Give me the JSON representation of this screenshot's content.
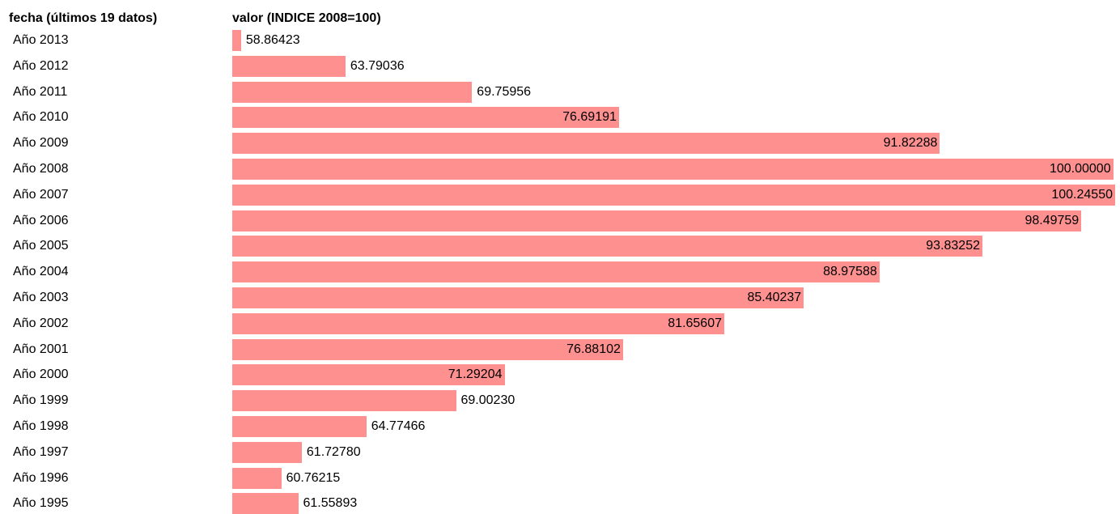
{
  "chart_data": {
    "type": "bar",
    "orientation": "horizontal",
    "category_header": "fecha (últimos 19 datos)",
    "value_header": "valor (INDICE 2008=100)",
    "bar_color": "#ff9090",
    "categories": [
      "Año 2013",
      "Año 2012",
      "Año 2011",
      "Año 2010",
      "Año 2009",
      "Año 2008",
      "Año 2007",
      "Año 2006",
      "Año 2005",
      "Año 2004",
      "Año 2003",
      "Año 2002",
      "Año 2001",
      "Año 2000",
      "Año 1999",
      "Año 1998",
      "Año 1997",
      "Año 1996",
      "Año 1995"
    ],
    "value_labels": [
      "58.86423",
      "63.79036",
      "69.75956",
      "76.69191",
      "91.82288",
      "100.00000",
      "100.24550",
      "98.49759",
      "93.83252",
      "88.97588",
      "85.40237",
      "81.65607",
      "76.88102",
      "71.29204",
      "69.00230",
      "64.77466",
      "61.72780",
      "60.76215",
      "61.55893"
    ],
    "values": [
      58.86423,
      63.79036,
      69.75956,
      76.69191,
      91.82288,
      100.0,
      100.2455,
      98.49759,
      93.83252,
      88.97588,
      85.40237,
      81.65607,
      76.88102,
      71.29204,
      69.0023,
      64.77466,
      61.7278,
      60.76215,
      61.55893
    ]
  }
}
